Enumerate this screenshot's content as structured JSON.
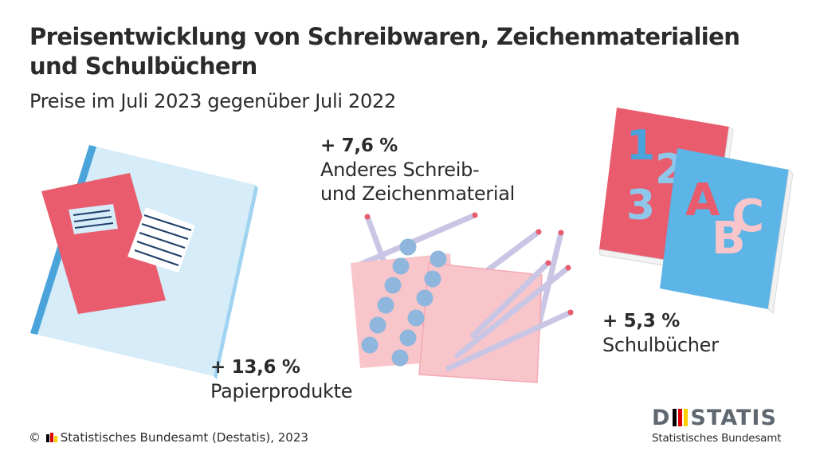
{
  "header": {
    "title": "Preisentwicklung von Schreibwaren, Zeichenmaterialien und Schulbüchern",
    "subtitle": "Preise im Juli 2023 gegenüber Juli 2022"
  },
  "items": [
    {
      "value": "+ 13,6 %",
      "label": "Papierprodukte",
      "icon": "notebook-icon"
    },
    {
      "value": "+ 7,6 %",
      "label_line1": "Anderes Schreib-",
      "label_line2": "und Zeichenmaterial",
      "icon": "pencils-paints-icon"
    },
    {
      "value": "+ 5,3 %",
      "label": "Schulbücher",
      "icon": "schoolbooks-icon"
    }
  ],
  "book_glyphs": {
    "front": [
      "A",
      "B",
      "C"
    ],
    "back": [
      "1",
      "2",
      "3"
    ]
  },
  "footer": {
    "copyright": "© ",
    "source": "Statistisches Bundesamt (Destatis), 2023"
  },
  "logo": {
    "word_left": "D",
    "word_right": "STATIS",
    "subline": "Statistisches Bundesamt"
  },
  "colors": {
    "red": "#e85c6e",
    "light_blue": "#d6ecf8",
    "blue": "#4aa3db",
    "sky": "#5db4e6",
    "pink": "#f8c5cb",
    "dot_blue": "#8fb6dc",
    "pencil": "#c8c6e4",
    "text": "#2b2b2b",
    "flag_black": "#000000",
    "flag_red": "#dd0000",
    "flag_gold": "#ffce00"
  }
}
